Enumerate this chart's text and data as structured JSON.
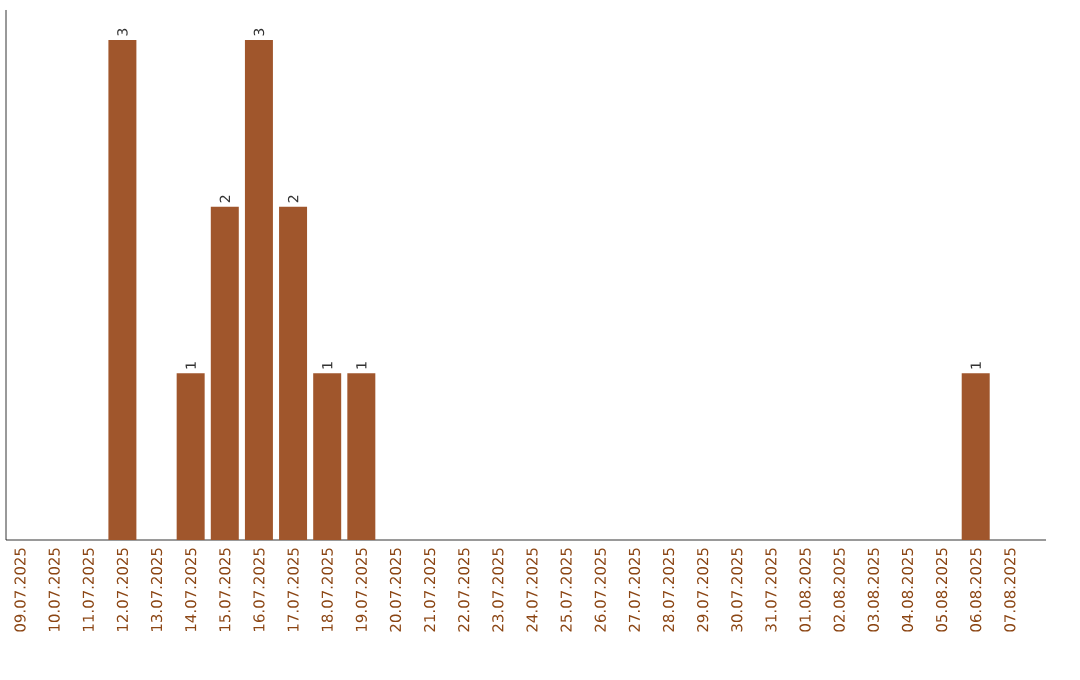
{
  "chart_data": {
    "type": "bar",
    "categories": [
      "09.07.2025",
      "10.07.2025",
      "11.07.2025",
      "12.07.2025",
      "13.07.2025",
      "14.07.2025",
      "15.07.2025",
      "16.07.2025",
      "17.07.2025",
      "18.07.2025",
      "19.07.2025",
      "20.07.2025",
      "21.07.2025",
      "22.07.2025",
      "23.07.2025",
      "24.07.2025",
      "25.07.2025",
      "26.07.2025",
      "27.07.2025",
      "28.07.2025",
      "29.07.2025",
      "30.07.2025",
      "31.07.2025",
      "01.08.2025",
      "02.08.2025",
      "03.08.2025",
      "04.08.2025",
      "05.08.2025",
      "06.08.2025",
      "07.08.2025"
    ],
    "values": [
      0,
      0,
      0,
      3,
      0,
      1,
      2,
      3,
      2,
      1,
      1,
      0,
      0,
      0,
      0,
      0,
      0,
      0,
      0,
      0,
      0,
      0,
      0,
      0,
      0,
      0,
      0,
      0,
      1,
      0
    ],
    "value_labels": [
      null,
      null,
      null,
      "3",
      null,
      "1",
      "2",
      "3",
      "2",
      "1",
      "1",
      null,
      null,
      null,
      null,
      null,
      null,
      null,
      null,
      null,
      null,
      null,
      null,
      null,
      null,
      null,
      null,
      null,
      "1",
      null
    ],
    "color": "#a0562c"
  }
}
